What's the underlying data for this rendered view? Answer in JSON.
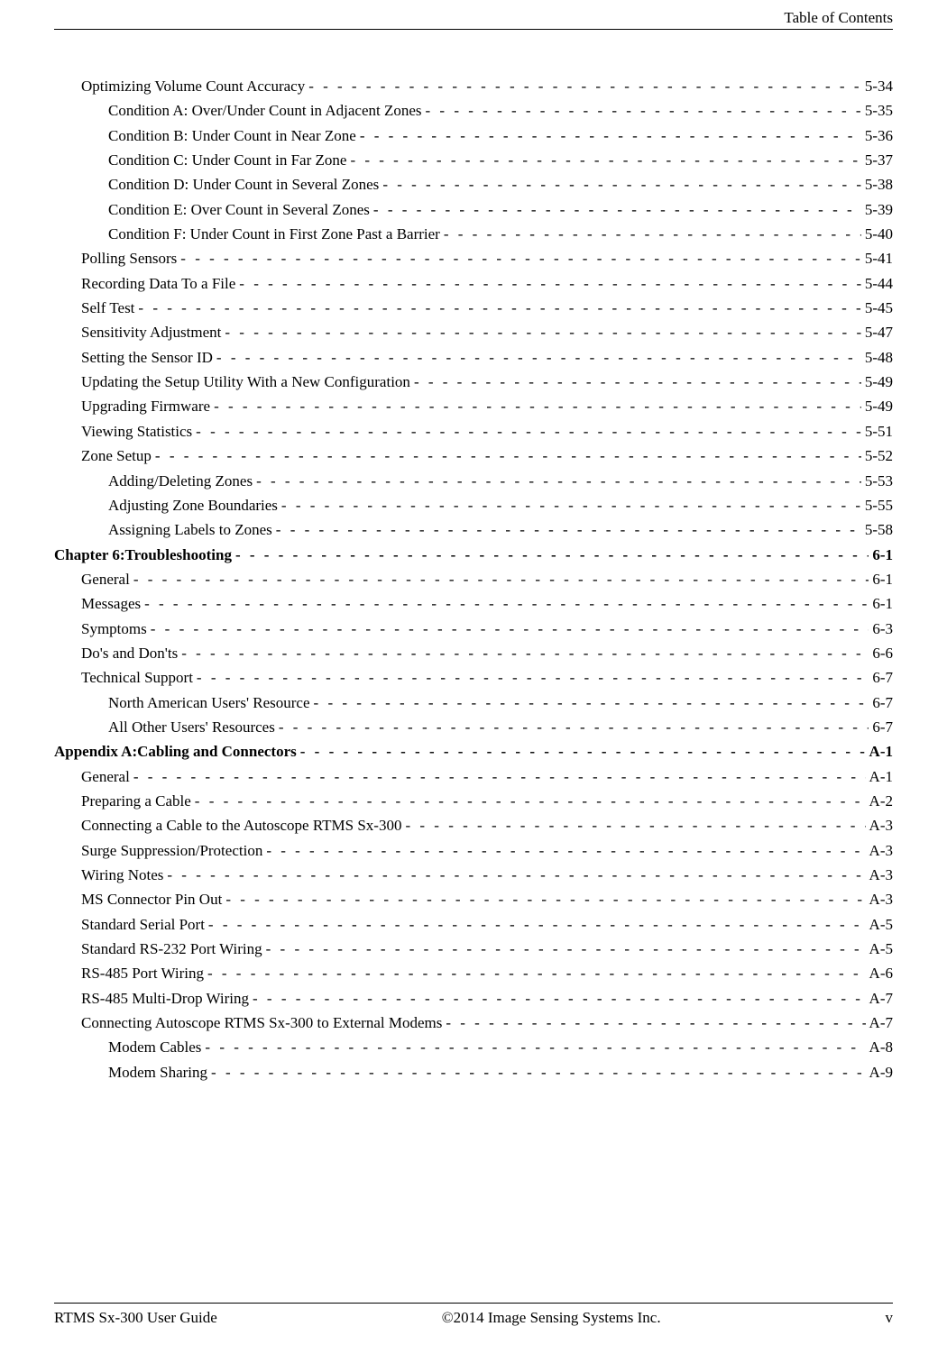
{
  "header": {
    "section_label": "Table of Contents"
  },
  "footer": {
    "left": "RTMS Sx-300 User Guide",
    "center": "©2014 Image Sensing Systems Inc.",
    "right": "v"
  },
  "toc": [
    {
      "title": "Optimizing Volume Count Accuracy",
      "page": "5-34",
      "indent": 1
    },
    {
      "title": "Condition A: Over/Under Count in Adjacent Zones",
      "page": "5-35",
      "indent": 2
    },
    {
      "title": "Condition B: Under Count in Near Zone",
      "page": "5-36",
      "indent": 2
    },
    {
      "title": "Condition C: Under Count in Far Zone",
      "page": "5-37",
      "indent": 2
    },
    {
      "title": "Condition D: Under Count in Several Zones",
      "page": "5-38",
      "indent": 2
    },
    {
      "title": "Condition E: Over Count in Several Zones",
      "page": "5-39",
      "indent": 2
    },
    {
      "title": "Condition F: Under Count in First Zone Past a Barrier",
      "page": "5-40",
      "indent": 2
    },
    {
      "title": "Polling Sensors",
      "page": "5-41",
      "indent": 1
    },
    {
      "title": "Recording Data To a File",
      "page": "5-44",
      "indent": 1
    },
    {
      "title": "Self Test",
      "page": "5-45",
      "indent": 1
    },
    {
      "title": "Sensitivity Adjustment",
      "page": "5-47",
      "indent": 1
    },
    {
      "title": "Setting the Sensor ID",
      "page": "5-48",
      "indent": 1
    },
    {
      "title": "Updating the Setup Utility With a New Configuration",
      "page": "5-49",
      "indent": 1
    },
    {
      "title": "Upgrading Firmware",
      "page": "5-49",
      "indent": 1
    },
    {
      "title": "Viewing Statistics",
      "page": "5-51",
      "indent": 1
    },
    {
      "title": "Zone Setup",
      "page": "5-52",
      "indent": 1
    },
    {
      "title": "Adding/Deleting Zones",
      "page": "5-53",
      "indent": 2
    },
    {
      "title": "Adjusting Zone Boundaries",
      "page": "5-55",
      "indent": 2
    },
    {
      "title": "Assigning Labels to Zones",
      "page": "5-58",
      "indent": 2
    },
    {
      "title": "Chapter 6:Troubleshooting",
      "page": "6-1",
      "indent": 0
    },
    {
      "title": "General",
      "page": "6-1",
      "indent": 1
    },
    {
      "title": "Messages",
      "page": "6-1",
      "indent": 1
    },
    {
      "title": "Symptoms",
      "page": "6-3",
      "indent": 1
    },
    {
      "title": "Do's and Don'ts",
      "page": "6-6",
      "indent": 1
    },
    {
      "title": "Technical Support",
      "page": "6-7",
      "indent": 1
    },
    {
      "title": "North American Users' Resource",
      "page": "6-7",
      "indent": 2
    },
    {
      "title": "All Other Users' Resources",
      "page": "6-7",
      "indent": 2
    },
    {
      "title": "Appendix A:Cabling and Connectors",
      "page": "A-1",
      "indent": 0
    },
    {
      "title": "General",
      "page": "A-1",
      "indent": 1
    },
    {
      "title": "Preparing a Cable",
      "page": "A-2",
      "indent": 1
    },
    {
      "title": "Connecting a Cable to the Autoscope RTMS Sx-300",
      "page": "A-3",
      "indent": 1
    },
    {
      "title": "Surge Suppression/Protection",
      "page": "A-3",
      "indent": 1
    },
    {
      "title": "Wiring Notes",
      "page": "A-3",
      "indent": 1
    },
    {
      "title": "MS Connector Pin Out",
      "page": "A-3",
      "indent": 1
    },
    {
      "title": "Standard Serial Port",
      "page": "A-5",
      "indent": 1
    },
    {
      "title": "Standard RS-232 Port Wiring",
      "page": "A-5",
      "indent": 1
    },
    {
      "title": "RS-485 Port Wiring",
      "page": "A-6",
      "indent": 1
    },
    {
      "title": "RS-485 Multi-Drop Wiring",
      "page": "A-7",
      "indent": 1
    },
    {
      "title": "Connecting Autoscope RTMS Sx-300 to External Modems",
      "page": "A-7",
      "indent": 1
    },
    {
      "title": "Modem Cables",
      "page": "A-8",
      "indent": 2
    },
    {
      "title": "Modem Sharing",
      "page": "A-9",
      "indent": 2
    }
  ]
}
